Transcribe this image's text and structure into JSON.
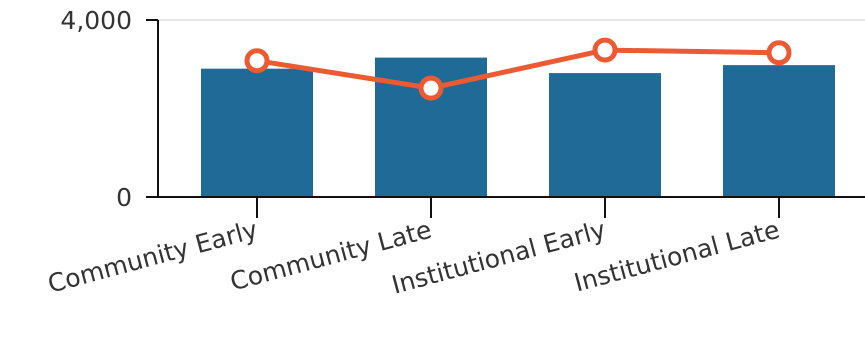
{
  "chart_data": {
    "type": "bar",
    "categories": [
      "Community Early",
      "Community Late",
      "Institutional Early",
      "Institutional Late"
    ],
    "series": [
      {
        "type": "bar",
        "values": [
          2900,
          3150,
          2800,
          2980
        ],
        "color": "#1f6a96"
      },
      {
        "type": "line",
        "values": [
          3080,
          2460,
          3320,
          3260
        ],
        "color": "#ec5a32"
      }
    ],
    "yticks": [
      "0",
      "4,000"
    ],
    "ytick_values": [
      0,
      4000
    ],
    "ylim": [
      0,
      4000
    ],
    "grid": {
      "y": true
    },
    "title": "",
    "xlabel": "",
    "ylabel": ""
  }
}
